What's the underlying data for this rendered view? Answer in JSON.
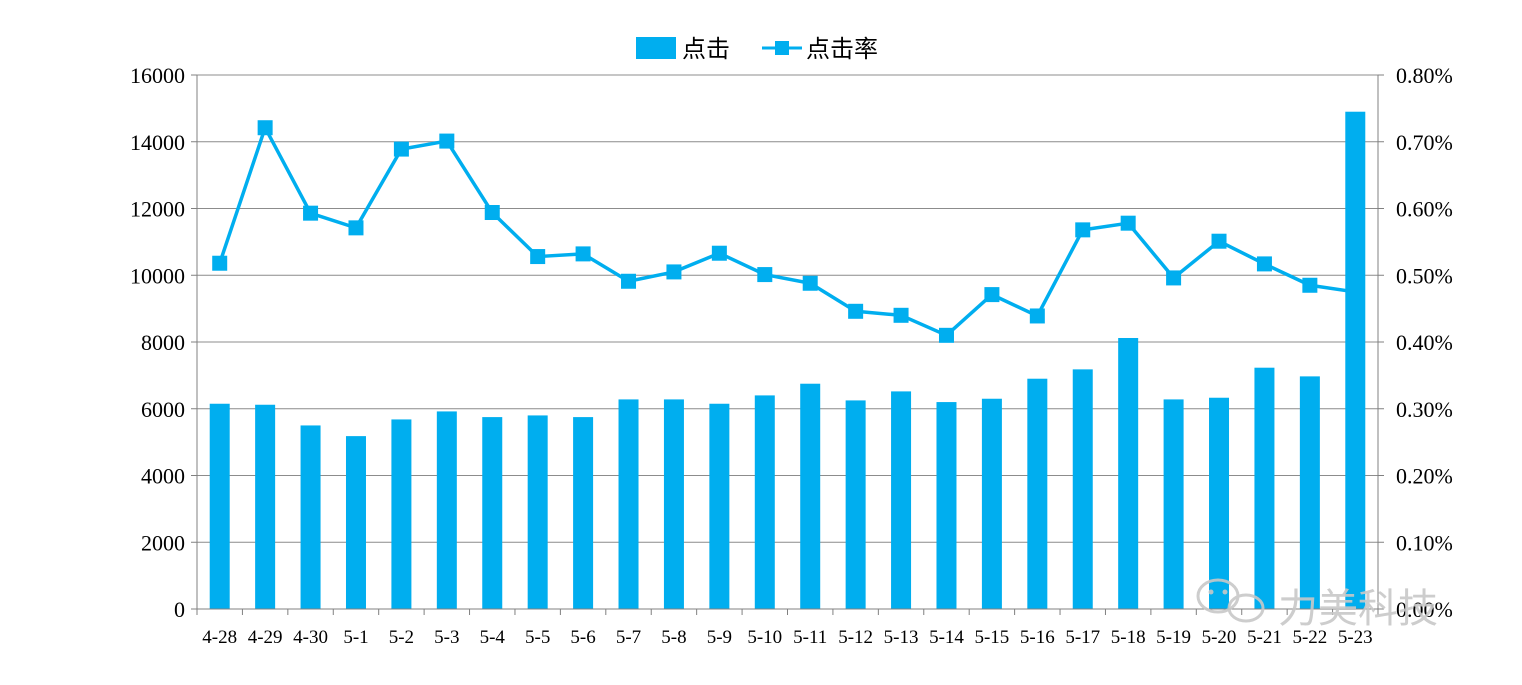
{
  "chart_data": {
    "type": "bar",
    "categories": [
      "4-28",
      "4-29",
      "4-30",
      "5-1",
      "5-2",
      "5-3",
      "5-4",
      "5-5",
      "5-6",
      "5-7",
      "5-8",
      "5-9",
      "5-10",
      "5-11",
      "5-12",
      "5-13",
      "5-14",
      "5-15",
      "5-16",
      "5-17",
      "5-18",
      "5-19",
      "5-20",
      "5-21",
      "5-22",
      "5-23"
    ],
    "series": [
      {
        "name": "点击",
        "type": "bar",
        "axis": "left",
        "values": [
          6150,
          6120,
          5500,
          5180,
          5680,
          5920,
          5750,
          5800,
          5750,
          6280,
          6280,
          6150,
          6400,
          6750,
          6250,
          6520,
          6200,
          6300,
          6900,
          7180,
          8120,
          6280,
          6330,
          7230,
          6970,
          14900
        ]
      },
      {
        "name": "点击率",
        "type": "line",
        "axis": "right",
        "values": [
          0.518,
          0.721,
          0.593,
          0.571,
          0.689,
          0.701,
          0.594,
          0.528,
          0.532,
          0.491,
          0.505,
          0.533,
          0.501,
          0.488,
          0.446,
          0.44,
          0.41,
          0.471,
          0.439,
          0.568,
          0.578,
          0.496,
          0.551,
          0.517,
          0.485,
          0.475
        ]
      }
    ],
    "y_left": {
      "ylim": [
        0,
        16000
      ],
      "ticks": [
        "0",
        "2000",
        "4000",
        "6000",
        "8000",
        "10000",
        "12000",
        "14000",
        "16000"
      ]
    },
    "y_right": {
      "ylim": [
        0,
        0.8
      ],
      "ticks": [
        "0.00%",
        "0.10%",
        "0.20%",
        "0.30%",
        "0.40%",
        "0.50%",
        "0.60%",
        "0.70%",
        "0.80%"
      ]
    },
    "grid": true,
    "legend_position": "top-center",
    "title": "",
    "xlabel": "",
    "ylabel": ""
  },
  "watermark": {
    "text": "力美科技",
    "icon": "wechat-icon"
  },
  "colors": {
    "series": "#00aeef",
    "grid": "#8c8c8c",
    "axis": "#808080"
  }
}
